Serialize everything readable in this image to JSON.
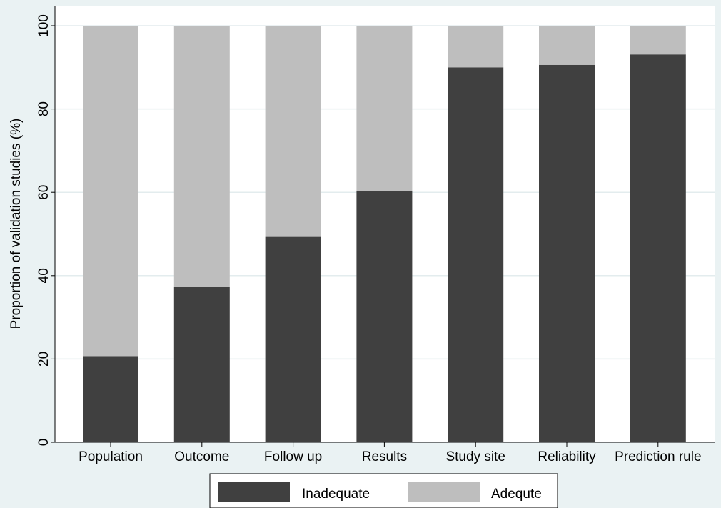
{
  "chart_data": {
    "type": "bar",
    "stacked": true,
    "categories": [
      "Population",
      "Outcome",
      "Follow up",
      "Results",
      "Study site",
      "Reliability",
      "Prediction rule"
    ],
    "series": [
      {
        "name": "Inadequate",
        "color": "#404040",
        "values": [
          20.7,
          37.3,
          49.3,
          60.3,
          90.0,
          90.6,
          93.1
        ]
      },
      {
        "name": "Adequte",
        "color": "#bebebe",
        "values": [
          79.3,
          62.7,
          50.7,
          39.7,
          10.0,
          9.4,
          6.9
        ]
      }
    ],
    "ylabel": "Proportion of validation studies (%)",
    "xlabel": "",
    "ylim": [
      0,
      100
    ],
    "yticks": [
      0,
      20,
      40,
      60,
      80,
      100
    ],
    "grid": true,
    "legend_position": "bottom",
    "colors": {
      "plot_background": "#ffffff",
      "page_background": "#eaf2f3",
      "grid": "#e3ecee"
    }
  }
}
